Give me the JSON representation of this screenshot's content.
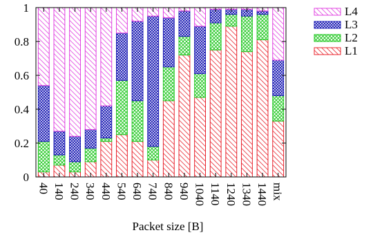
{
  "chart_data": {
    "type": "bar",
    "stacked": true,
    "xlabel": "Packet size [B]",
    "ylabel": "",
    "ylim": [
      0,
      1
    ],
    "yticks": [
      "0",
      "0.2",
      "0.4",
      "0.6",
      "0.8",
      "1"
    ],
    "categories": [
      "40",
      "140",
      "240",
      "340",
      "440",
      "540",
      "640",
      "740",
      "840",
      "940",
      "1040",
      "1140",
      "1240",
      "1340",
      "1440",
      "mix"
    ],
    "series": [
      {
        "name": "L1",
        "color": "#e8202a",
        "pattern": "diagonal-hatch",
        "values": [
          0.03,
          0.07,
          0.03,
          0.09,
          0.21,
          0.25,
          0.21,
          0.1,
          0.45,
          0.72,
          0.47,
          0.75,
          0.89,
          0.74,
          0.81,
          0.33
        ]
      },
      {
        "name": "L2",
        "color": "#22c822",
        "pattern": "cross-hatch",
        "values": [
          0.18,
          0.06,
          0.06,
          0.08,
          0.02,
          0.32,
          0.24,
          0.08,
          0.2,
          0.11,
          0.14,
          0.16,
          0.07,
          0.21,
          0.15,
          0.15
        ]
      },
      {
        "name": "L3",
        "color": "#1a1ab4",
        "pattern": "dense-cross-hatch",
        "values": [
          0.33,
          0.14,
          0.15,
          0.11,
          0.19,
          0.28,
          0.47,
          0.77,
          0.29,
          0.15,
          0.28,
          0.08,
          0.03,
          0.04,
          0.02,
          0.21
        ]
      },
      {
        "name": "L4",
        "color": "#e040e0",
        "pattern": "diagonal-hatch",
        "values": [
          0.46,
          0.73,
          0.76,
          0.72,
          0.58,
          0.15,
          0.08,
          0.05,
          0.06,
          0.02,
          0.11,
          0.01,
          0.01,
          0.01,
          0.02,
          0.31
        ]
      }
    ],
    "legend_position": "top-right",
    "grid": false
  }
}
